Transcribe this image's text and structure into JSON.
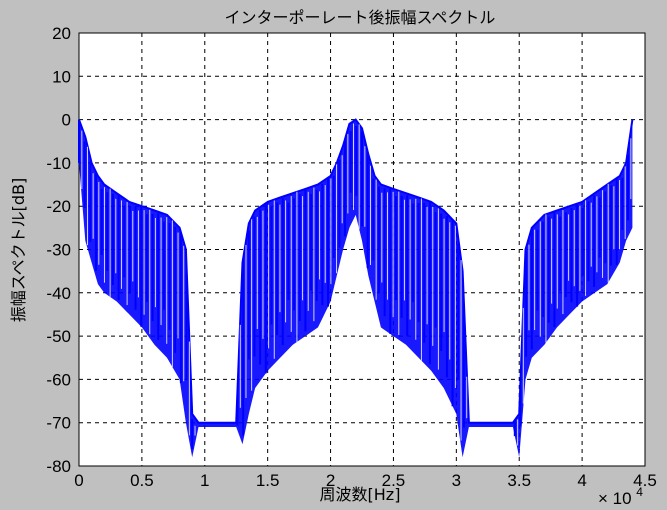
{
  "chart_data": {
    "type": "line",
    "title": "インターポーレート後振幅スペクトル",
    "xlabel": "周波数[Hz]",
    "ylabel": "振幅スペクトル[dB]",
    "x_exponent_label": "× 10",
    "x_exponent_power": "4",
    "xlim": [
      0,
      4.5
    ],
    "ylim": [
      -80,
      20
    ],
    "x_scale_factor": 10000,
    "xticks": [
      0,
      0.5,
      1,
      1.5,
      2,
      2.5,
      3,
      3.5,
      4,
      4.5
    ],
    "xtick_labels": [
      "0",
      "0.5",
      "1",
      "1.5",
      "2",
      "2.5",
      "3",
      "3.5",
      "4",
      "4.5"
    ],
    "yticks": [
      20,
      10,
      0,
      -10,
      -20,
      -30,
      -40,
      -50,
      -60,
      -70,
      -80
    ],
    "ytick_labels": [
      "20",
      "10",
      "0",
      "-10",
      "-20",
      "-30",
      "-40",
      "-50",
      "-60",
      "-70",
      "-80"
    ],
    "grid": true,
    "line_color": "#0000ff",
    "series": [
      {
        "x": [
          0.0,
          0.05,
          0.1,
          0.15,
          0.2,
          0.3,
          0.4,
          0.5,
          0.6,
          0.7,
          0.8,
          0.85,
          0.9,
          0.95,
          1.0,
          1.1,
          1.2,
          1.25,
          1.3,
          1.35,
          1.4,
          1.5,
          1.6,
          1.7,
          1.8,
          1.9,
          2.0,
          2.05,
          2.1,
          2.15,
          2.2,
          2.25,
          2.3,
          2.35,
          2.4,
          2.5,
          2.6,
          2.7,
          2.8,
          2.9,
          3.0,
          3.05,
          3.1,
          3.15,
          3.2,
          3.3,
          3.4,
          3.45,
          3.5,
          3.55,
          3.6,
          3.7,
          3.8,
          3.9,
          4.0,
          4.1,
          4.2,
          4.3,
          4.35,
          4.4
        ],
        "upper": [
          0,
          -4,
          -10,
          -13,
          -15,
          -17,
          -19,
          -20,
          -21,
          -22,
          -25,
          -30,
          -68,
          -70,
          -70,
          -70,
          -70,
          -70,
          -33,
          -24,
          -21,
          -19,
          -18,
          -17,
          -16,
          -15,
          -13,
          -10,
          -6,
          -1,
          0,
          -2,
          -8,
          -13,
          -15,
          -16,
          -17,
          -18,
          -19,
          -21,
          -24,
          -35,
          -70,
          -70,
          -70,
          -70,
          -70,
          -70,
          -68,
          -30,
          -25,
          -22,
          -21,
          -20,
          -19,
          -17,
          -15,
          -13,
          -10,
          0
        ],
        "lower": [
          -10,
          -28,
          -33,
          -38,
          -40,
          -42,
          -45,
          -48,
          -52,
          -55,
          -60,
          -70,
          -78,
          -71,
          -71,
          -71,
          -71,
          -71,
          -75,
          -68,
          -62,
          -58,
          -55,
          -52,
          -50,
          -48,
          -42,
          -36,
          -30,
          -25,
          -22,
          -28,
          -36,
          -42,
          -48,
          -50,
          -52,
          -55,
          -58,
          -62,
          -68,
          -78,
          -71,
          -71,
          -71,
          -71,
          -71,
          -71,
          -78,
          -60,
          -55,
          -52,
          -48,
          -45,
          -42,
          -40,
          -38,
          -33,
          -28,
          -25
        ]
      }
    ]
  }
}
